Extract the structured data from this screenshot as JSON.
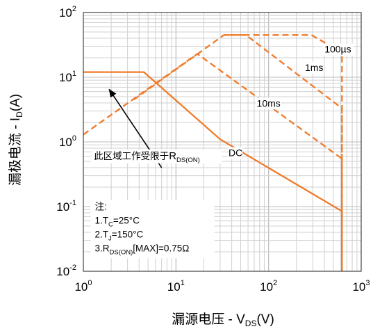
{
  "chart_data": {
    "type": "line",
    "scale": {
      "x": "log",
      "y": "log"
    },
    "xlim": [
      1,
      1000
    ],
    "ylim": [
      0.01,
      100
    ],
    "grid": true,
    "xlabel": {
      "main": "漏源电压",
      "sep": " - ",
      "var": "V",
      "sub": "DS",
      "unit": "(V)"
    },
    "ylabel": {
      "main": "漏极电流",
      "sep": " - ",
      "var": "I",
      "sub": "D",
      "unit": "(A)"
    },
    "x_ticks": [
      {
        "value": 1,
        "base": "10",
        "exp": "0"
      },
      {
        "value": 10,
        "base": "10",
        "exp": "1"
      },
      {
        "value": 100,
        "base": "10",
        "exp": "2"
      },
      {
        "value": 1000,
        "base": "10",
        "exp": "3"
      }
    ],
    "y_ticks": [
      {
        "value": 0.01,
        "base": "10",
        "exp": "-2"
      },
      {
        "value": 0.1,
        "base": "10",
        "exp": "-1"
      },
      {
        "value": 1,
        "base": "10",
        "exp": "0"
      },
      {
        "value": 10,
        "base": "10",
        "exp": "1"
      },
      {
        "value": 100,
        "base": "10",
        "exp": "2"
      }
    ],
    "color": "#F07A28",
    "series": [
      {
        "name": "DC",
        "style": "solid",
        "points": [
          [
            1,
            12
          ],
          [
            4.5,
            12
          ],
          [
            30,
            1.1
          ],
          [
            620,
            0.085
          ],
          [
            620,
            0.01
          ]
        ],
        "label_at": [
          44,
          0.6
        ]
      },
      {
        "name": "10ms",
        "style": "dashed",
        "points": [
          [
            1,
            1.3
          ],
          [
            17,
            23
          ],
          [
            620,
            0.55
          ],
          [
            620,
            0.01
          ]
        ],
        "label_at": [
          100,
          3.5
        ]
      },
      {
        "name": "1ms",
        "style": "dashed",
        "points": [
          [
            3.5,
            4.5
          ],
          [
            33,
            45
          ],
          [
            57,
            45
          ],
          [
            620,
            3.3
          ],
          [
            620,
            0.01
          ]
        ],
        "label_at": [
          310,
          12.5
        ]
      },
      {
        "name": "100µs",
        "style": "dashed",
        "points": [
          [
            33,
            45
          ],
          [
            290,
            45
          ],
          [
            620,
            24
          ],
          [
            620,
            0.01
          ]
        ],
        "label_at": [
          560,
          24
        ]
      }
    ],
    "annotations": {
      "arrow_text": {
        "main": "此区域工作受限于",
        "var": "R",
        "sub": "DS(ON)"
      },
      "arrow_from": [
        7,
        0.4
      ],
      "arrow_to": [
        1.9,
        6.5
      ],
      "arrow_text_at": [
        1.3,
        0.54
      ],
      "notes_title": "注:",
      "notes": [
        {
          "pre": "1.T",
          "sub": "C",
          "post": "=25°C"
        },
        {
          "pre": "2.T",
          "sub": "J",
          "post": "=150°C"
        },
        {
          "pre": "3.R",
          "sub": "DS(ON)",
          "post": "[MAX]=0.75Ω"
        }
      ],
      "notes_at": [
        1.33,
        0.09
      ]
    }
  }
}
